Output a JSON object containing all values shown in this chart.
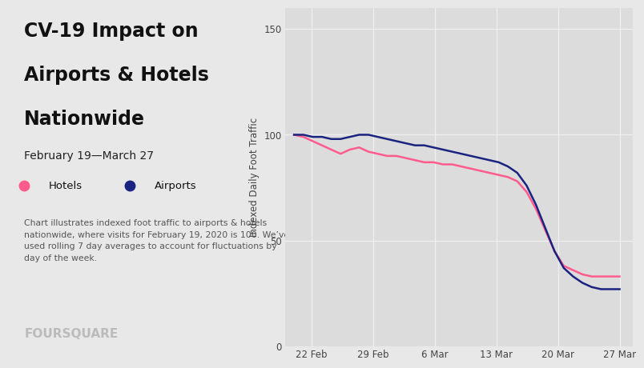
{
  "title_line1": "CV-19 Impact on",
  "title_line2": "Airports & Hotels",
  "title_line3": "Nationwide",
  "subtitle": "February 19—March 27",
  "legend_hotels": "Hotels",
  "legend_airports": "Airports",
  "annotation": "Chart illustrates indexed foot traffic to airports & hotels\nnationwide, where visits for February 19, 2020 is 100. We’ve\nused rolling 7 day averages to account for fluctuations by\nday of the week.",
  "watermark": "FOURSQUARE",
  "ylabel": "Indexed Daily Foot Traffic",
  "yticks": [
    0,
    50,
    100,
    150
  ],
  "xtick_labels": [
    "22 Feb",
    "29 Feb",
    "6 Mar",
    "13 Mar",
    "20 Mar",
    "27 Mar"
  ],
  "hotels_color": "#FF5C8D",
  "airports_color": "#1A2480",
  "bg_color": "#E8E8E8",
  "plot_bg_color": "#DCDCDC",
  "grid_color": "#F0F0F0",
  "hotels_y": [
    100,
    99,
    97,
    95,
    93,
    91,
    93,
    94,
    92,
    91,
    90,
    90,
    89,
    88,
    87,
    87,
    86,
    86,
    85,
    84,
    83,
    82,
    81,
    80,
    78,
    73,
    65,
    55,
    45,
    38,
    36,
    34,
    33,
    33,
    33,
    33
  ],
  "airports_y": [
    100,
    100,
    99,
    99,
    98,
    98,
    99,
    100,
    100,
    99,
    98,
    97,
    96,
    95,
    95,
    94,
    93,
    92,
    91,
    90,
    89,
    88,
    87,
    85,
    82,
    76,
    67,
    56,
    45,
    37,
    33,
    30,
    28,
    27,
    27,
    27
  ],
  "xtick_positions": [
    21,
    28,
    35,
    42,
    49,
    56
  ]
}
